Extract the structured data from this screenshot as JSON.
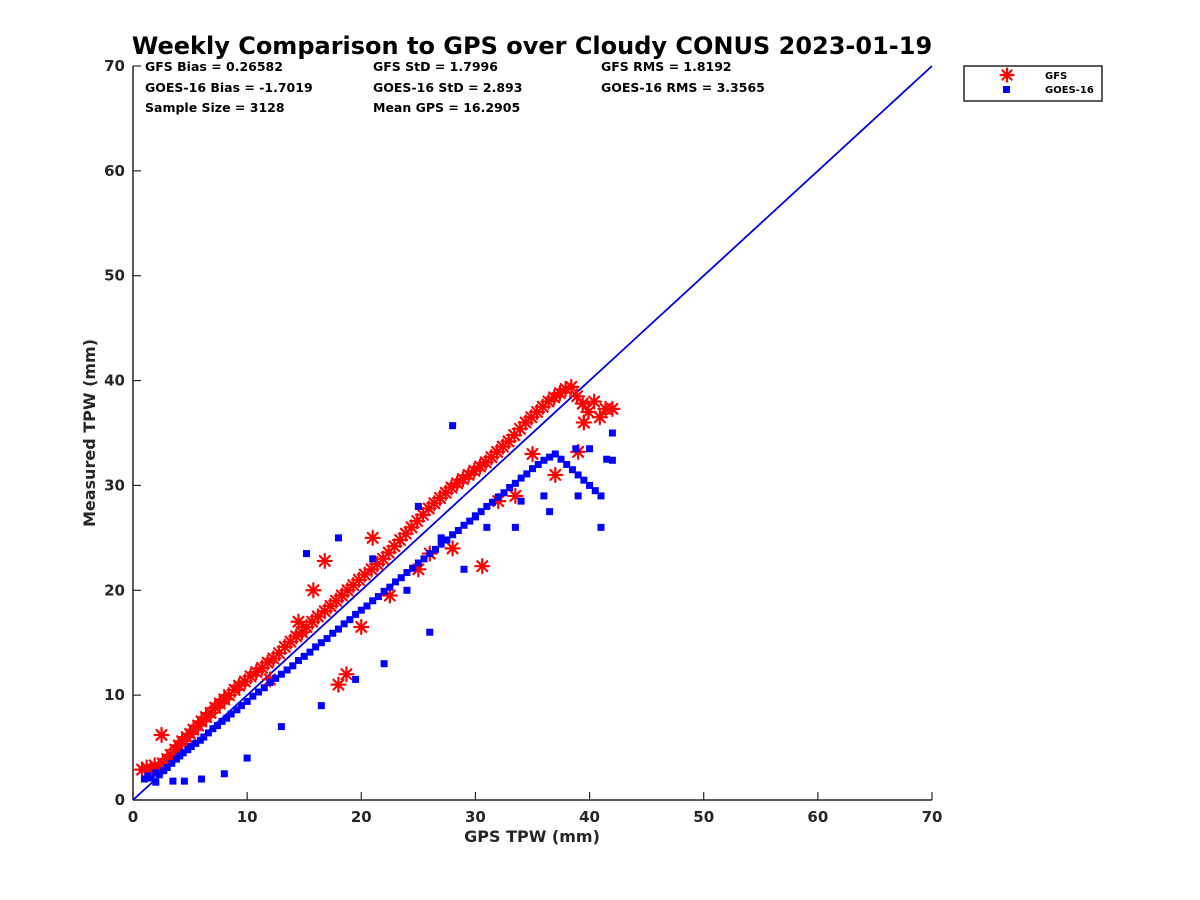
{
  "chart_data": {
    "type": "scatter",
    "title": "Weekly Comparison to GPS over Cloudy CONUS 2023-01-19",
    "xlabel": "GPS TPW (mm)",
    "ylabel": "Measured TPW (mm)",
    "xlim": [
      0,
      70
    ],
    "ylim": [
      0,
      70
    ],
    "xticks": [
      0,
      10,
      20,
      30,
      40,
      50,
      60,
      70
    ],
    "yticks": [
      0,
      10,
      20,
      30,
      40,
      50,
      60,
      70
    ],
    "grid": false,
    "legend_position": "outside-top-right",
    "stats": [
      [
        "GFS Bias = 0.26582",
        "GFS StD = 1.7996",
        "GFS RMS = 1.8192"
      ],
      [
        "GOES-16 Bias = -1.7019",
        "GOES-16 StD = 2.893",
        "GOES-16 RMS = 3.3565"
      ],
      [
        "Sample Size = 3128",
        "Mean GPS = 16.2905",
        ""
      ]
    ],
    "reference_line": {
      "x": [
        0,
        70
      ],
      "y": [
        0,
        70
      ],
      "color": "#0000dd"
    },
    "series": [
      {
        "name": "GFS",
        "marker": "asterisk",
        "color": "#ff0000",
        "x": [
          0.8,
          1.2,
          1.5,
          1.9,
          2.2,
          2.6,
          3.0,
          3.3,
          3.7,
          4.0,
          4.3,
          4.7,
          5.0,
          5.3,
          5.7,
          6.0,
          6.4,
          6.8,
          7.2,
          7.6,
          8.0,
          8.4,
          8.9,
          9.3,
          9.8,
          10.3,
          10.8,
          11.3,
          11.8,
          12.3,
          12.8,
          13.3,
          13.8,
          14.3,
          14.8,
          15.2,
          15.7,
          16.2,
          16.8,
          17.3,
          17.8,
          18.3,
          18.8,
          19.3,
          19.8,
          20.3,
          20.9,
          21.4,
          21.9,
          22.4,
          22.9,
          23.4,
          23.9,
          24.4,
          24.9,
          25.4,
          25.9,
          26.4,
          26.9,
          27.4,
          27.9,
          28.4,
          28.9,
          29.4,
          29.9,
          30.4,
          30.9,
          31.4,
          31.9,
          32.4,
          32.9,
          33.4,
          33.9,
          34.4,
          34.9,
          35.4,
          35.9,
          36.4,
          36.9,
          37.4,
          37.9,
          38.4,
          38.9,
          39.4,
          39.9,
          40.4,
          40.9,
          41.4,
          42.0,
          2.5,
          18.0,
          18.7,
          15.8,
          16.8,
          21.0,
          30.6,
          39.0,
          28.0,
          25.0,
          35.0,
          20.0,
          12.0,
          33.5,
          37.0,
          39.5,
          32.0,
          26.0,
          22.5,
          14.5
        ],
        "y": [
          2.9,
          3.1,
          2.8,
          3.3,
          3.0,
          3.5,
          3.9,
          4.3,
          4.8,
          5.2,
          5.6,
          6.0,
          6.3,
          6.7,
          7.1,
          7.5,
          7.9,
          8.3,
          8.8,
          9.2,
          9.6,
          10.0,
          10.5,
          10.9,
          11.3,
          11.8,
          12.2,
          12.6,
          13.1,
          13.5,
          14.0,
          14.6,
          15.1,
          15.6,
          16.0,
          16.5,
          17.0,
          17.5,
          18.0,
          18.5,
          19.0,
          19.5,
          20.0,
          20.5,
          21.0,
          21.5,
          22.0,
          22.5,
          23.0,
          23.6,
          24.2,
          24.8,
          25.4,
          26.0,
          26.6,
          27.2,
          27.8,
          28.3,
          28.8,
          29.3,
          29.8,
          30.2,
          30.6,
          31.0,
          31.4,
          31.8,
          32.2,
          32.7,
          33.2,
          33.7,
          34.2,
          34.8,
          35.4,
          36.0,
          36.5,
          37.0,
          37.5,
          38.0,
          38.4,
          38.8,
          39.2,
          39.4,
          38.5,
          37.8,
          37.0,
          38.0,
          36.5,
          37.3,
          37.3,
          6.2,
          11.0,
          12.0,
          20.0,
          22.8,
          25.0,
          22.3,
          33.2,
          24.0,
          22.0,
          33.0,
          16.5,
          11.5,
          29.0,
          31.0,
          36.0,
          28.5,
          23.5,
          19.5,
          17.0
        ]
      },
      {
        "name": "GOES-16",
        "marker": "square",
        "color": "#0000ff",
        "x": [
          1.0,
          1.3,
          1.6,
          2.0,
          2.3,
          2.7,
          3.0,
          3.4,
          3.8,
          4.1,
          4.4,
          4.8,
          5.1,
          5.5,
          5.9,
          6.2,
          6.6,
          7.0,
          7.4,
          7.8,
          8.2,
          8.6,
          9.1,
          9.5,
          10.0,
          10.5,
          11.0,
          11.5,
          12.0,
          12.5,
          13.0,
          13.5,
          14.0,
          14.5,
          15.0,
          15.5,
          16.0,
          16.5,
          17.0,
          17.5,
          18.0,
          18.5,
          19.0,
          19.5,
          20.0,
          20.5,
          21.0,
          21.5,
          22.0,
          22.5,
          23.0,
          23.5,
          24.0,
          24.5,
          25.0,
          25.5,
          26.0,
          26.5,
          27.0,
          27.5,
          28.0,
          28.5,
          29.0,
          29.5,
          30.0,
          30.5,
          31.0,
          31.5,
          32.0,
          32.5,
          33.0,
          33.5,
          34.0,
          34.5,
          35.0,
          35.5,
          36.0,
          36.5,
          37.0,
          37.5,
          38.0,
          38.5,
          39.0,
          39.5,
          40.0,
          40.5,
          41.0,
          41.5,
          42.0,
          28.0,
          15.2,
          18.0,
          21.0,
          25.0,
          24.0,
          27.0,
          30.0,
          33.5,
          36.0,
          38.8,
          40.0,
          42.0,
          34.0,
          31.0,
          29.0,
          26.0,
          22.0,
          19.5,
          16.5,
          13.0,
          10.0,
          8.0,
          6.0,
          4.5,
          3.5,
          2.0,
          36.5,
          39.0,
          41.0
        ],
        "y": [
          2.0,
          2.3,
          2.1,
          2.6,
          2.4,
          2.8,
          3.1,
          3.5,
          3.9,
          4.2,
          4.5,
          4.8,
          5.1,
          5.4,
          5.7,
          6.0,
          6.4,
          6.8,
          7.1,
          7.5,
          7.8,
          8.2,
          8.6,
          9.0,
          9.4,
          9.9,
          10.3,
          10.7,
          11.2,
          11.6,
          12.0,
          12.4,
          12.8,
          13.3,
          13.7,
          14.1,
          14.6,
          15.0,
          15.4,
          15.9,
          16.3,
          16.8,
          17.2,
          17.7,
          18.1,
          18.5,
          19.0,
          19.4,
          19.9,
          20.3,
          20.8,
          21.2,
          21.7,
          22.1,
          22.6,
          23.0,
          23.5,
          23.9,
          24.4,
          24.8,
          25.3,
          25.7,
          26.2,
          26.6,
          27.1,
          27.5,
          28.0,
          28.4,
          28.9,
          29.3,
          29.8,
          30.2,
          30.7,
          31.1,
          31.6,
          32.0,
          32.4,
          32.7,
          33.0,
          32.5,
          32.0,
          31.5,
          31.0,
          30.5,
          30.0,
          29.5,
          29.0,
          32.5,
          32.4,
          35.7,
          23.5,
          25.0,
          23.0,
          28.0,
          20.0,
          25.0,
          27.0,
          26.0,
          29.0,
          33.5,
          33.5,
          35.0,
          28.5,
          26.0,
          22.0,
          16.0,
          13.0,
          11.5,
          9.0,
          7.0,
          4.0,
          2.5,
          2.0,
          1.8,
          1.8,
          1.7,
          27.5,
          29.0,
          26.0
        ]
      }
    ]
  }
}
